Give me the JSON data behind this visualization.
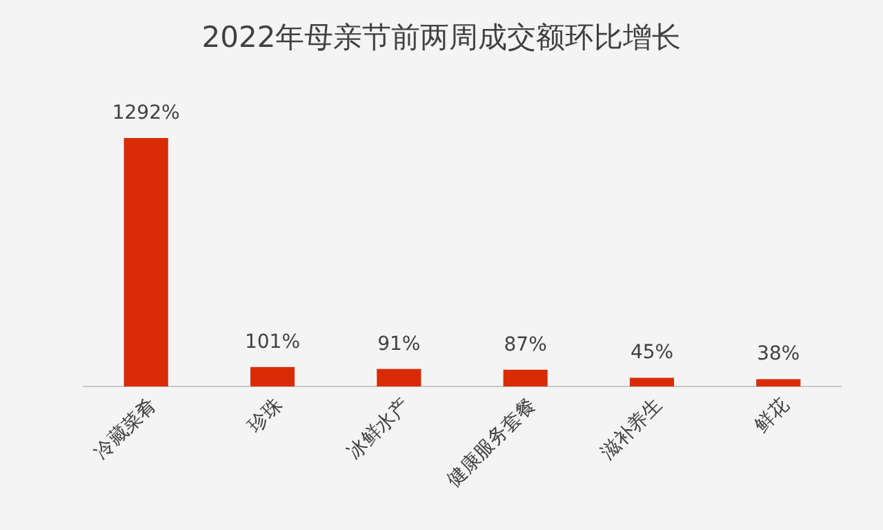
{
  "chart_data": {
    "type": "bar",
    "title": "2022年母亲节前两周成交额环比增长",
    "categories": [
      "冷藏菜肴",
      "珍珠",
      "冰鲜水产",
      "健康服务套餐",
      "滋补养生",
      "鲜花"
    ],
    "values": [
      1292,
      101,
      91,
      87,
      45,
      38
    ],
    "value_labels": [
      "1292%",
      "101%",
      "91%",
      "87%",
      "45%",
      "38%"
    ],
    "color": "#d92b05"
  }
}
